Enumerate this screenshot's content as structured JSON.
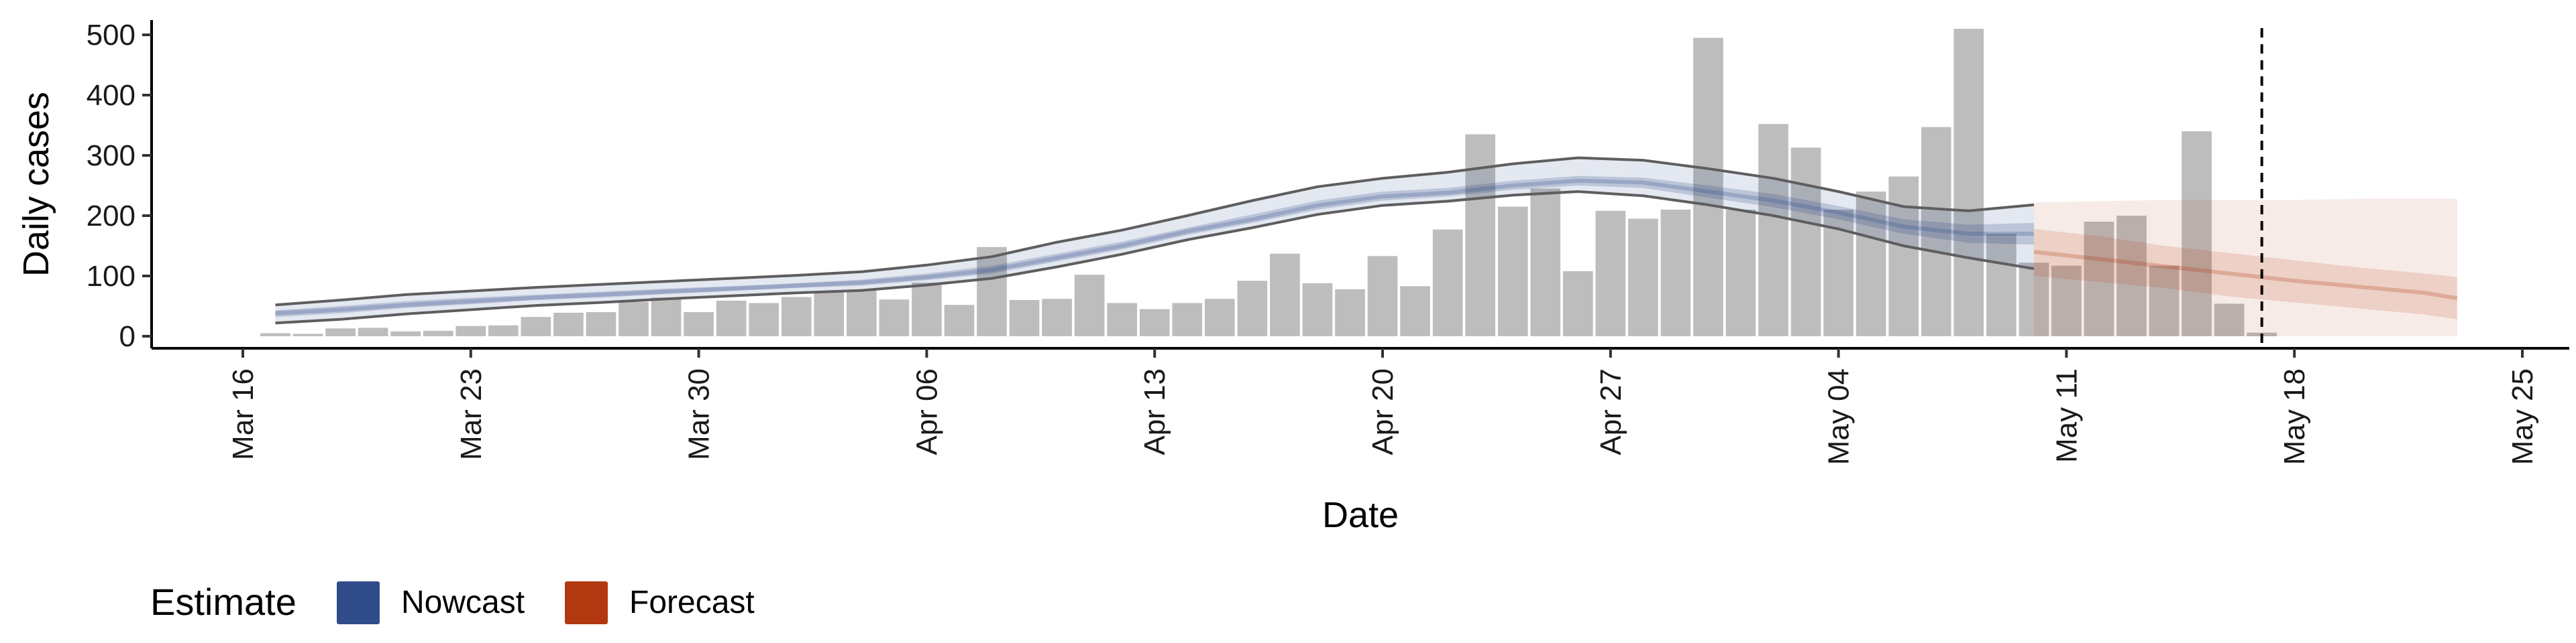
{
  "chart_data": {
    "type": "bar",
    "xlabel": "Date",
    "ylabel": "Daily cases",
    "ylim": [
      0,
      520
    ],
    "yticks": [
      0,
      100,
      200,
      300,
      400,
      500
    ],
    "xlim": [
      "2020-03-16",
      "2020-05-25"
    ],
    "xticks": [
      {
        "date": "2020-03-16",
        "label": "Mar 16"
      },
      {
        "date": "2020-03-23",
        "label": "Mar 23"
      },
      {
        "date": "2020-03-30",
        "label": "Mar 30"
      },
      {
        "date": "2020-04-06",
        "label": "Apr 06"
      },
      {
        "date": "2020-04-13",
        "label": "Apr 13"
      },
      {
        "date": "2020-04-20",
        "label": "Apr 20"
      },
      {
        "date": "2020-04-27",
        "label": "Apr 27"
      },
      {
        "date": "2020-05-04",
        "label": "May 04"
      },
      {
        "date": "2020-05-11",
        "label": "May 11"
      },
      {
        "date": "2020-05-18",
        "label": "May 18"
      },
      {
        "date": "2020-05-25",
        "label": "May 25"
      }
    ],
    "grid": false,
    "vline_date": "2020-05-17",
    "bar_color": "#bdbdbd",
    "bars": {
      "dates": [
        "2020-03-17",
        "2020-03-18",
        "2020-03-19",
        "2020-03-20",
        "2020-03-21",
        "2020-03-22",
        "2020-03-23",
        "2020-03-24",
        "2020-03-25",
        "2020-03-26",
        "2020-03-27",
        "2020-03-28",
        "2020-03-29",
        "2020-03-30",
        "2020-03-31",
        "2020-04-01",
        "2020-04-02",
        "2020-04-03",
        "2020-04-04",
        "2020-04-05",
        "2020-04-06",
        "2020-04-07",
        "2020-04-08",
        "2020-04-09",
        "2020-04-10",
        "2020-04-11",
        "2020-04-12",
        "2020-04-13",
        "2020-04-14",
        "2020-04-15",
        "2020-04-16",
        "2020-04-17",
        "2020-04-18",
        "2020-04-19",
        "2020-04-20",
        "2020-04-21",
        "2020-04-22",
        "2020-04-23",
        "2020-04-24",
        "2020-04-25",
        "2020-04-26",
        "2020-04-27",
        "2020-04-28",
        "2020-04-29",
        "2020-04-30",
        "2020-05-01",
        "2020-05-02",
        "2020-05-03",
        "2020-05-04",
        "2020-05-05",
        "2020-05-06",
        "2020-05-07",
        "2020-05-08",
        "2020-05-09",
        "2020-05-10",
        "2020-05-11",
        "2020-05-12",
        "2020-05-13",
        "2020-05-14",
        "2020-05-15",
        "2020-05-16",
        "2020-05-17"
      ],
      "values": [
        5,
        4,
        13,
        14,
        8,
        9,
        17,
        18,
        32,
        39,
        40,
        57,
        64,
        40,
        59,
        55,
        65,
        75,
        76,
        61,
        89,
        52,
        148,
        60,
        62,
        102,
        55,
        45,
        55,
        62,
        92,
        137,
        88,
        78,
        133,
        83,
        177,
        335,
        215,
        245,
        108,
        208,
        195,
        210,
        495,
        210,
        352,
        313,
        210,
        240,
        265,
        347,
        510,
        170,
        122,
        117,
        190,
        200,
        117,
        340,
        54,
        6
      ]
    },
    "series": [
      {
        "name": "Nowcast",
        "color": "#2f4b8a",
        "dates": [
          "2020-03-17",
          "2020-03-19",
          "2020-03-21",
          "2020-03-23",
          "2020-03-25",
          "2020-03-27",
          "2020-03-29",
          "2020-03-31",
          "2020-04-02",
          "2020-04-04",
          "2020-04-06",
          "2020-04-08",
          "2020-04-10",
          "2020-04-12",
          "2020-04-14",
          "2020-04-16",
          "2020-04-18",
          "2020-04-20",
          "2020-04-22",
          "2020-04-24",
          "2020-04-26",
          "2020-04-28",
          "2020-04-30",
          "2020-05-02",
          "2020-05-04",
          "2020-05-06",
          "2020-05-08",
          "2020-05-10"
        ],
        "median": [
          38,
          44,
          52,
          58,
          64,
          69,
          74,
          79,
          84,
          89,
          98,
          110,
          130,
          150,
          174,
          194,
          217,
          232,
          238,
          250,
          258,
          255,
          240,
          225,
          205,
          182,
          170,
          170
        ],
        "inner_lower": [
          32,
          38,
          47,
          53,
          60,
          64,
          70,
          75,
          80,
          84,
          93,
          104,
          124,
          144,
          168,
          188,
          210,
          225,
          232,
          243,
          250,
          246,
          230,
          214,
          194,
          170,
          155,
          152
        ],
        "inner_upper": [
          43,
          50,
          58,
          64,
          69,
          74,
          79,
          83,
          88,
          94,
          104,
          117,
          137,
          157,
          180,
          202,
          225,
          240,
          246,
          258,
          266,
          263,
          250,
          236,
          216,
          194,
          185,
          188
        ],
        "outer_lower": [
          22,
          28,
          37,
          44,
          51,
          56,
          62,
          67,
          72,
          76,
          85,
          96,
          115,
          136,
          160,
          180,
          202,
          217,
          224,
          234,
          240,
          233,
          218,
          200,
          178,
          150,
          130,
          112
        ],
        "outer_upper": [
          52,
          60,
          69,
          75,
          81,
          86,
          91,
          96,
          101,
          107,
          118,
          132,
          156,
          176,
          200,
          225,
          248,
          262,
          272,
          286,
          296,
          292,
          278,
          262,
          240,
          215,
          208,
          218
        ]
      },
      {
        "name": "Forecast",
        "color": "#b2390f",
        "dates": [
          "2020-05-10",
          "2020-05-12",
          "2020-05-14",
          "2020-05-16",
          "2020-05-18",
          "2020-05-20",
          "2020-05-22",
          "2020-05-23"
        ],
        "median": [
          140,
          128,
          116,
          104,
          92,
          82,
          72,
          63
        ],
        "inner_lower": [
          100,
          90,
          80,
          66,
          56,
          46,
          36,
          28
        ],
        "inner_upper": [
          178,
          166,
          150,
          138,
          126,
          114,
          104,
          98
        ],
        "outer_lower": [
          0,
          0,
          0,
          0,
          0,
          0,
          0,
          0
        ],
        "outer_upper": [
          222,
          224,
          226,
          226,
          226,
          228,
          228,
          228
        ]
      }
    ],
    "legend": {
      "title": "Estimate",
      "position": "bottom-left",
      "items": [
        {
          "label": "Nowcast",
          "color": "#2f4b8a"
        },
        {
          "label": "Forecast",
          "color": "#b2390f"
        }
      ]
    }
  }
}
